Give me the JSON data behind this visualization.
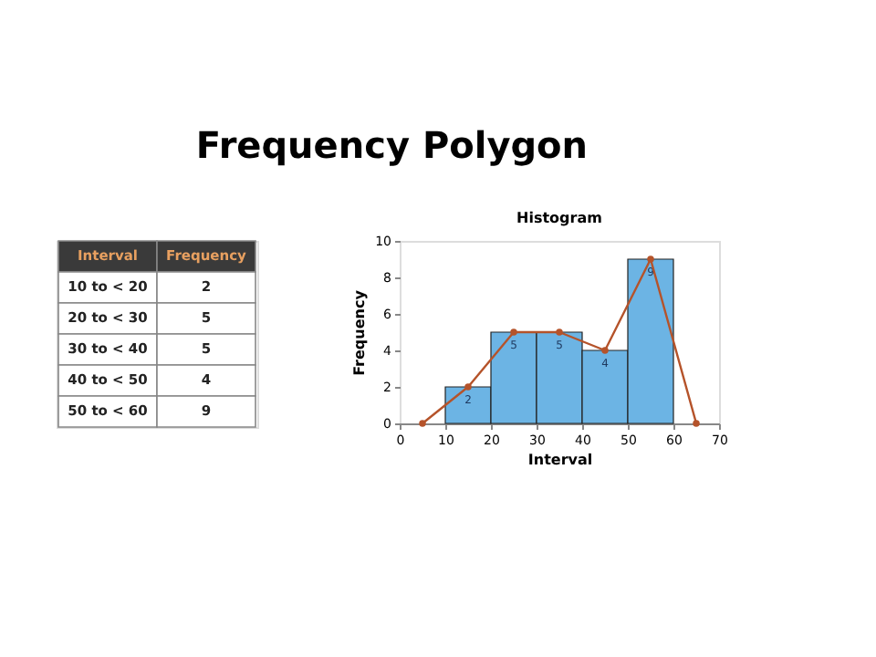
{
  "chart_data": {
    "type": "histogram",
    "title": "Frequency Polygon",
    "subtitle": "Histogram",
    "xlabel": "Interval",
    "ylabel": "Frequency",
    "bins": [
      10,
      20,
      30,
      40,
      50,
      60
    ],
    "values": [
      2,
      5,
      5,
      4,
      9
    ],
    "color": "#6cb4e4",
    "value_labels": [
      "2",
      "5",
      "5",
      "4",
      "9"
    ],
    "series": [
      {
        "type": "line",
        "x": [
          5,
          15,
          25,
          35,
          45,
          55,
          65
        ],
        "values": [
          0,
          2,
          5,
          5,
          4,
          9,
          0
        ],
        "color": "#b5532a",
        "marker": "circle"
      }
    ],
    "xlim": [
      0,
      70
    ],
    "xticks": [
      0,
      10,
      20,
      30,
      40,
      50,
      60,
      70
    ],
    "ylim": [
      0,
      10
    ],
    "yticks": [
      0,
      2,
      4,
      6,
      8,
      10
    ],
    "annotations": [
      "Interval",
      "Frequency",
      "10  to <  20",
      "2",
      "20  to <  30",
      "5",
      "30  to <  40",
      "5",
      "40  to <  50",
      "4",
      "50  to <  60",
      "9"
    ]
  }
}
